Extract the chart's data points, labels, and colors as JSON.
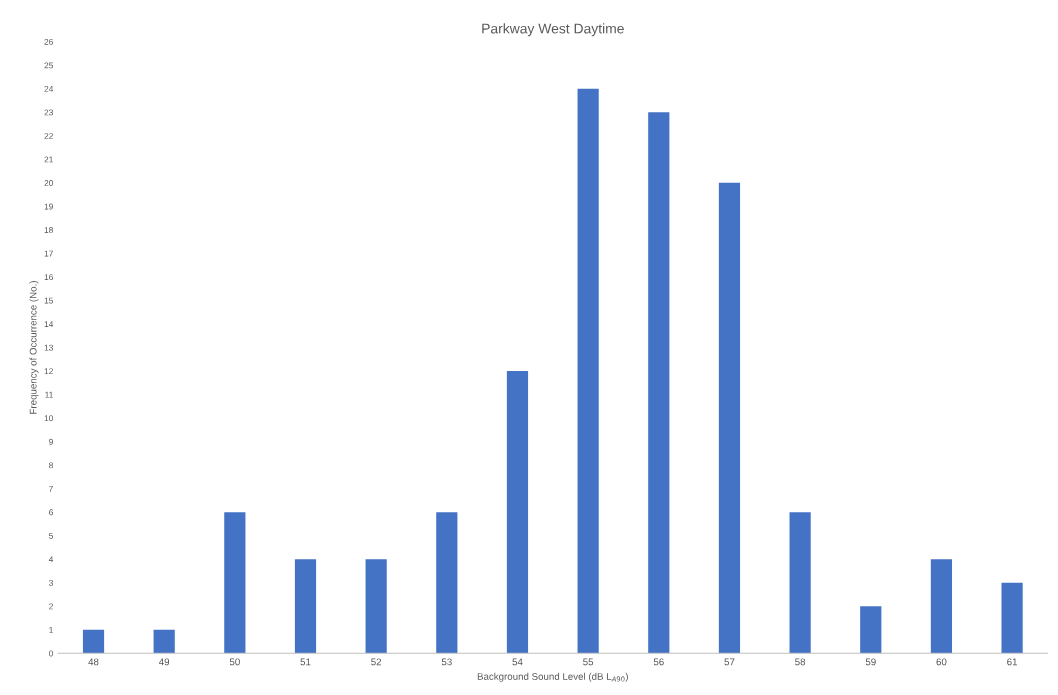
{
  "chart_data": {
    "type": "bar",
    "title": "Parkway West Daytime",
    "xlabel": "Background Sound Level (dB L$_{A90}$)",
    "ylabel": "Frequency of Occurrence (No.)",
    "categories": [
      "48",
      "49",
      "50",
      "51",
      "52",
      "53",
      "54",
      "55",
      "56",
      "57",
      "58",
      "59",
      "60",
      "61"
    ],
    "values": [
      1,
      1,
      6,
      4,
      4,
      6,
      12,
      24,
      23,
      20,
      6,
      2,
      4,
      3
    ],
    "color": "#4472c4",
    "ylim": [
      0,
      26
    ],
    "yticks": [
      0,
      1,
      2,
      3,
      4,
      5,
      6,
      7,
      8,
      9,
      10,
      11,
      12,
      13,
      14,
      15,
      16,
      17,
      18,
      19,
      20,
      21,
      22,
      23,
      24,
      25,
      26
    ],
    "grid": false
  }
}
